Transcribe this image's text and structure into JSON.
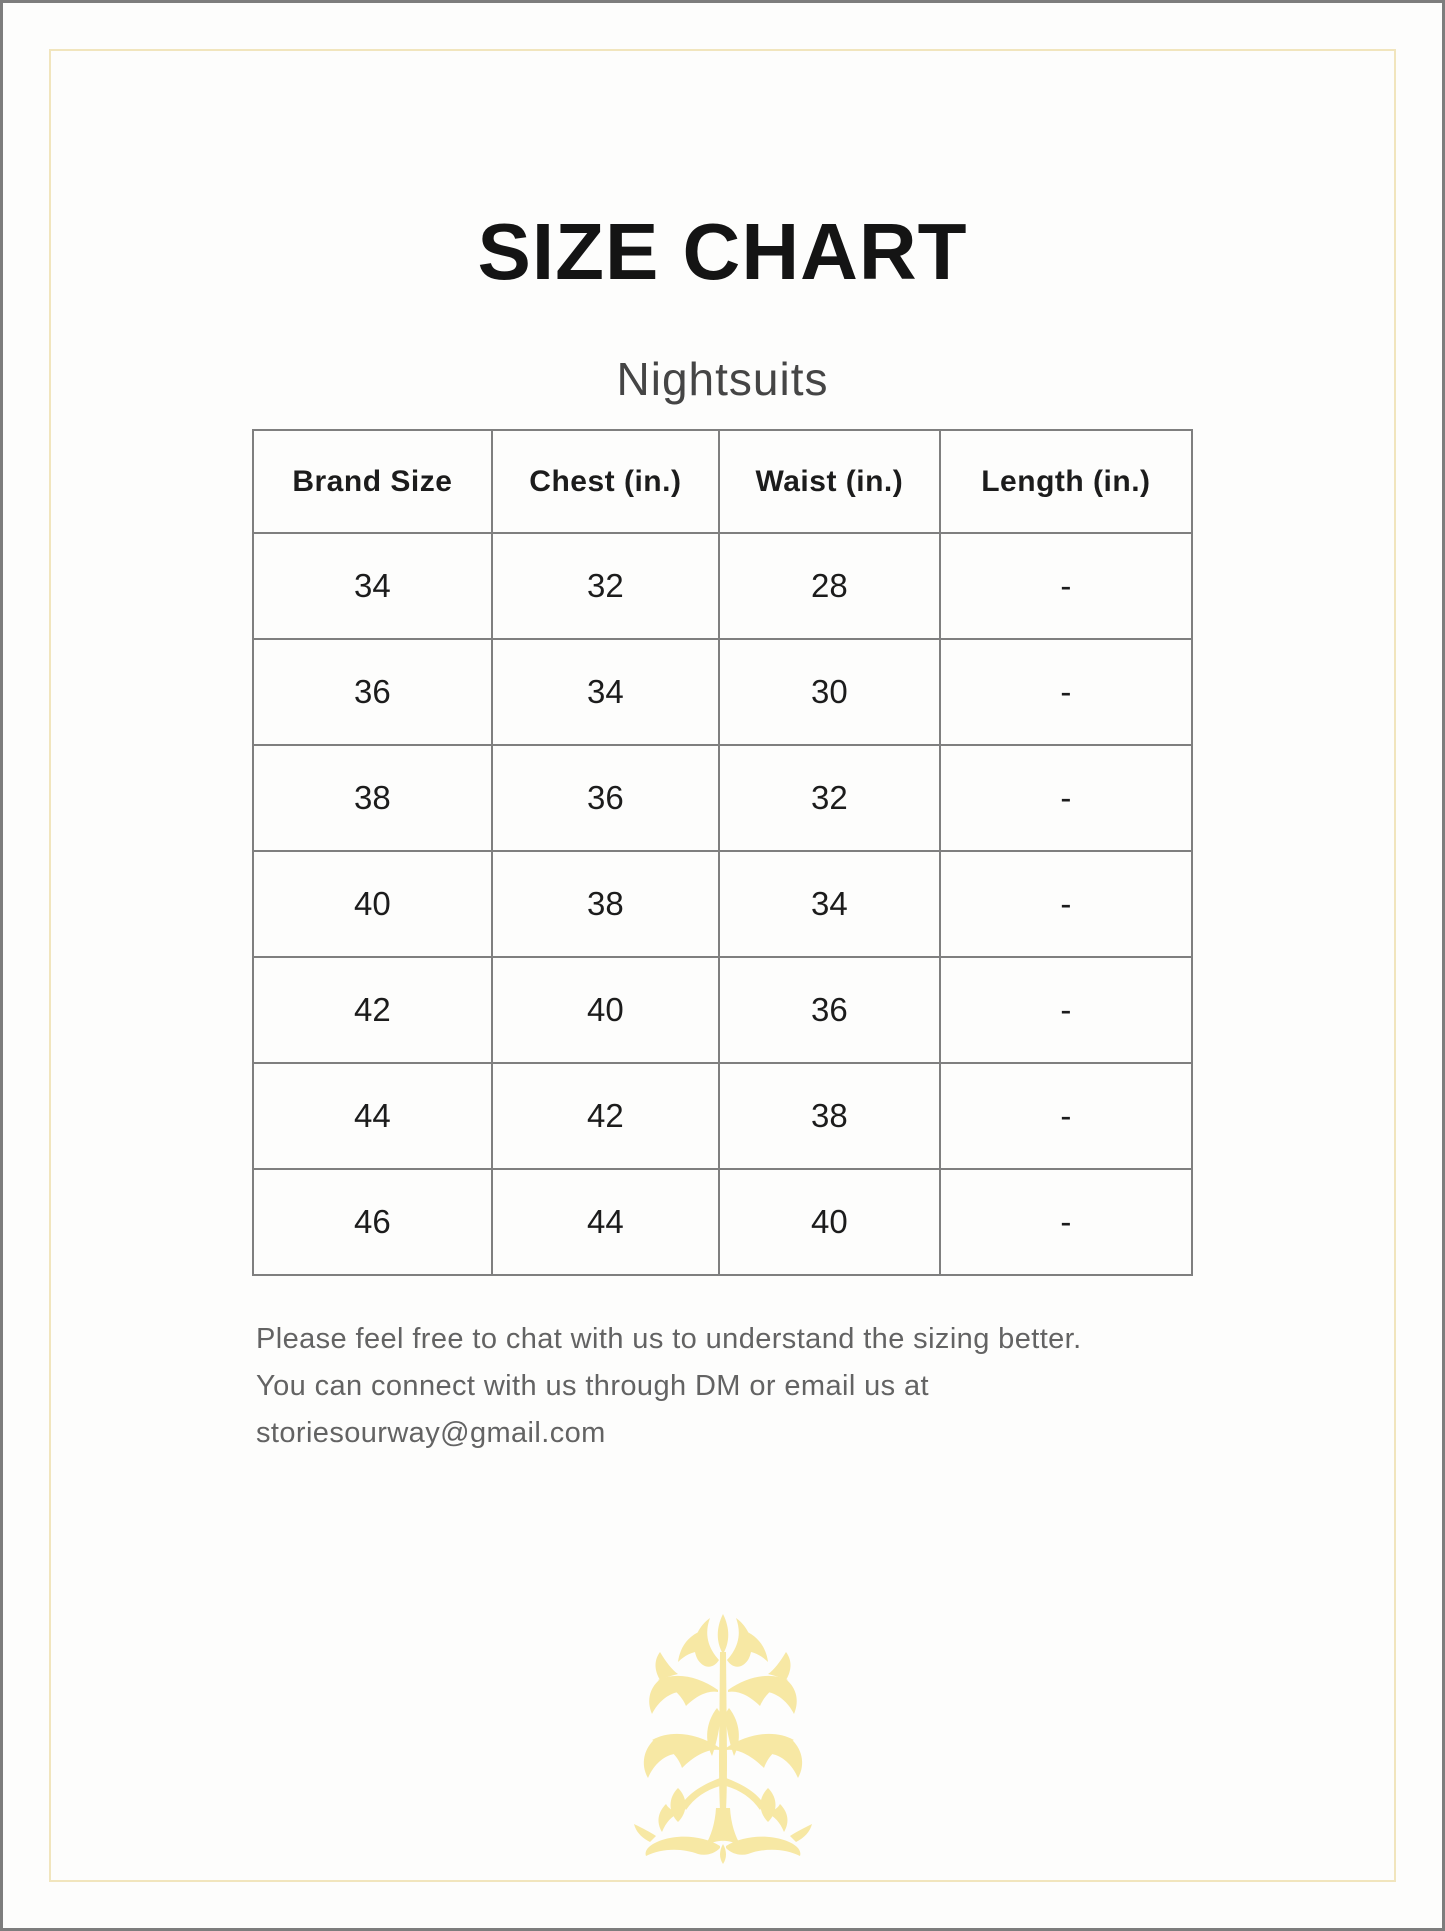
{
  "page": {
    "title": "SIZE CHART",
    "subtitle": "Nightsuits"
  },
  "table": {
    "headers": [
      "Brand Size",
      "Chest (in.)",
      "Waist (in.)",
      "Length (in.)"
    ],
    "rows": [
      [
        "34",
        "32",
        "28",
        "-"
      ],
      [
        "36",
        "34",
        "30",
        "-"
      ],
      [
        "38",
        "36",
        "32",
        "-"
      ],
      [
        "40",
        "38",
        "34",
        "-"
      ],
      [
        "42",
        "40",
        "36",
        "-"
      ],
      [
        "44",
        "42",
        "38",
        "-"
      ],
      [
        "46",
        "44",
        "40",
        "-"
      ]
    ]
  },
  "footer": {
    "line1": "Please feel free to chat with us to understand the sizing better.",
    "line2": "You can connect with us through DM or email us at",
    "line3": "storiesourway@gmail.com"
  },
  "decor": {
    "motif_name": "floral-damask-motif",
    "motif_color": "#f7e8a4",
    "frame_color": "#f1e5bd",
    "table_border_color": "#7f7f7f",
    "page_border_color": "#7d7d7d",
    "background_color": "#fdfdfc"
  }
}
